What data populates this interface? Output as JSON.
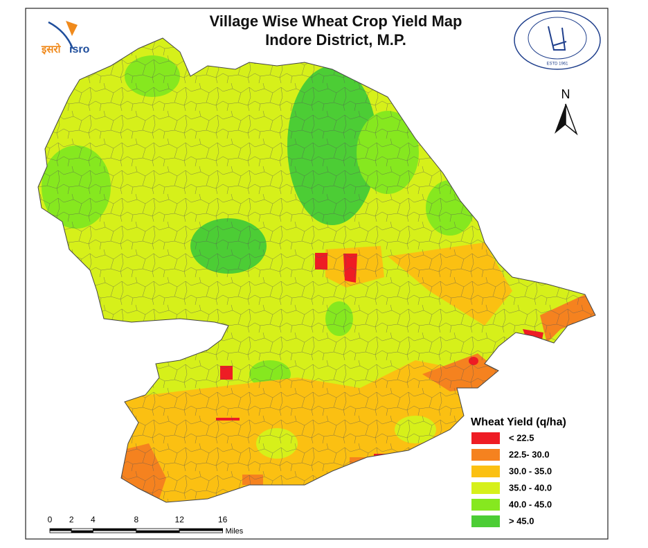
{
  "header": {
    "title": "Village Wise Wheat Crop Yield Map",
    "subtitle": "Indore District, M.P."
  },
  "logos": {
    "left_hindi": "इसरो",
    "left_english": "isro",
    "right_text": "ESTD 1961"
  },
  "north": "N",
  "legend": {
    "title": "Wheat Yield (q/ha)",
    "items": [
      {
        "label": "< 22.5",
        "color": "#ee1c24"
      },
      {
        "label": "22.5- 30.0",
        "color": "#f5821f"
      },
      {
        "label": "30.0 - 35.0",
        "color": "#fbc012"
      },
      {
        "label": "35.0 - 40.0",
        "color": "#d6f01a"
      },
      {
        "label": "40.0 - 45.0",
        "color": "#86e81f"
      },
      {
        "label": "> 45.0",
        "color": "#4ccd35"
      }
    ]
  },
  "scale": {
    "ticks": [
      0,
      2,
      4,
      8,
      12,
      16
    ],
    "unit": "Miles"
  }
}
